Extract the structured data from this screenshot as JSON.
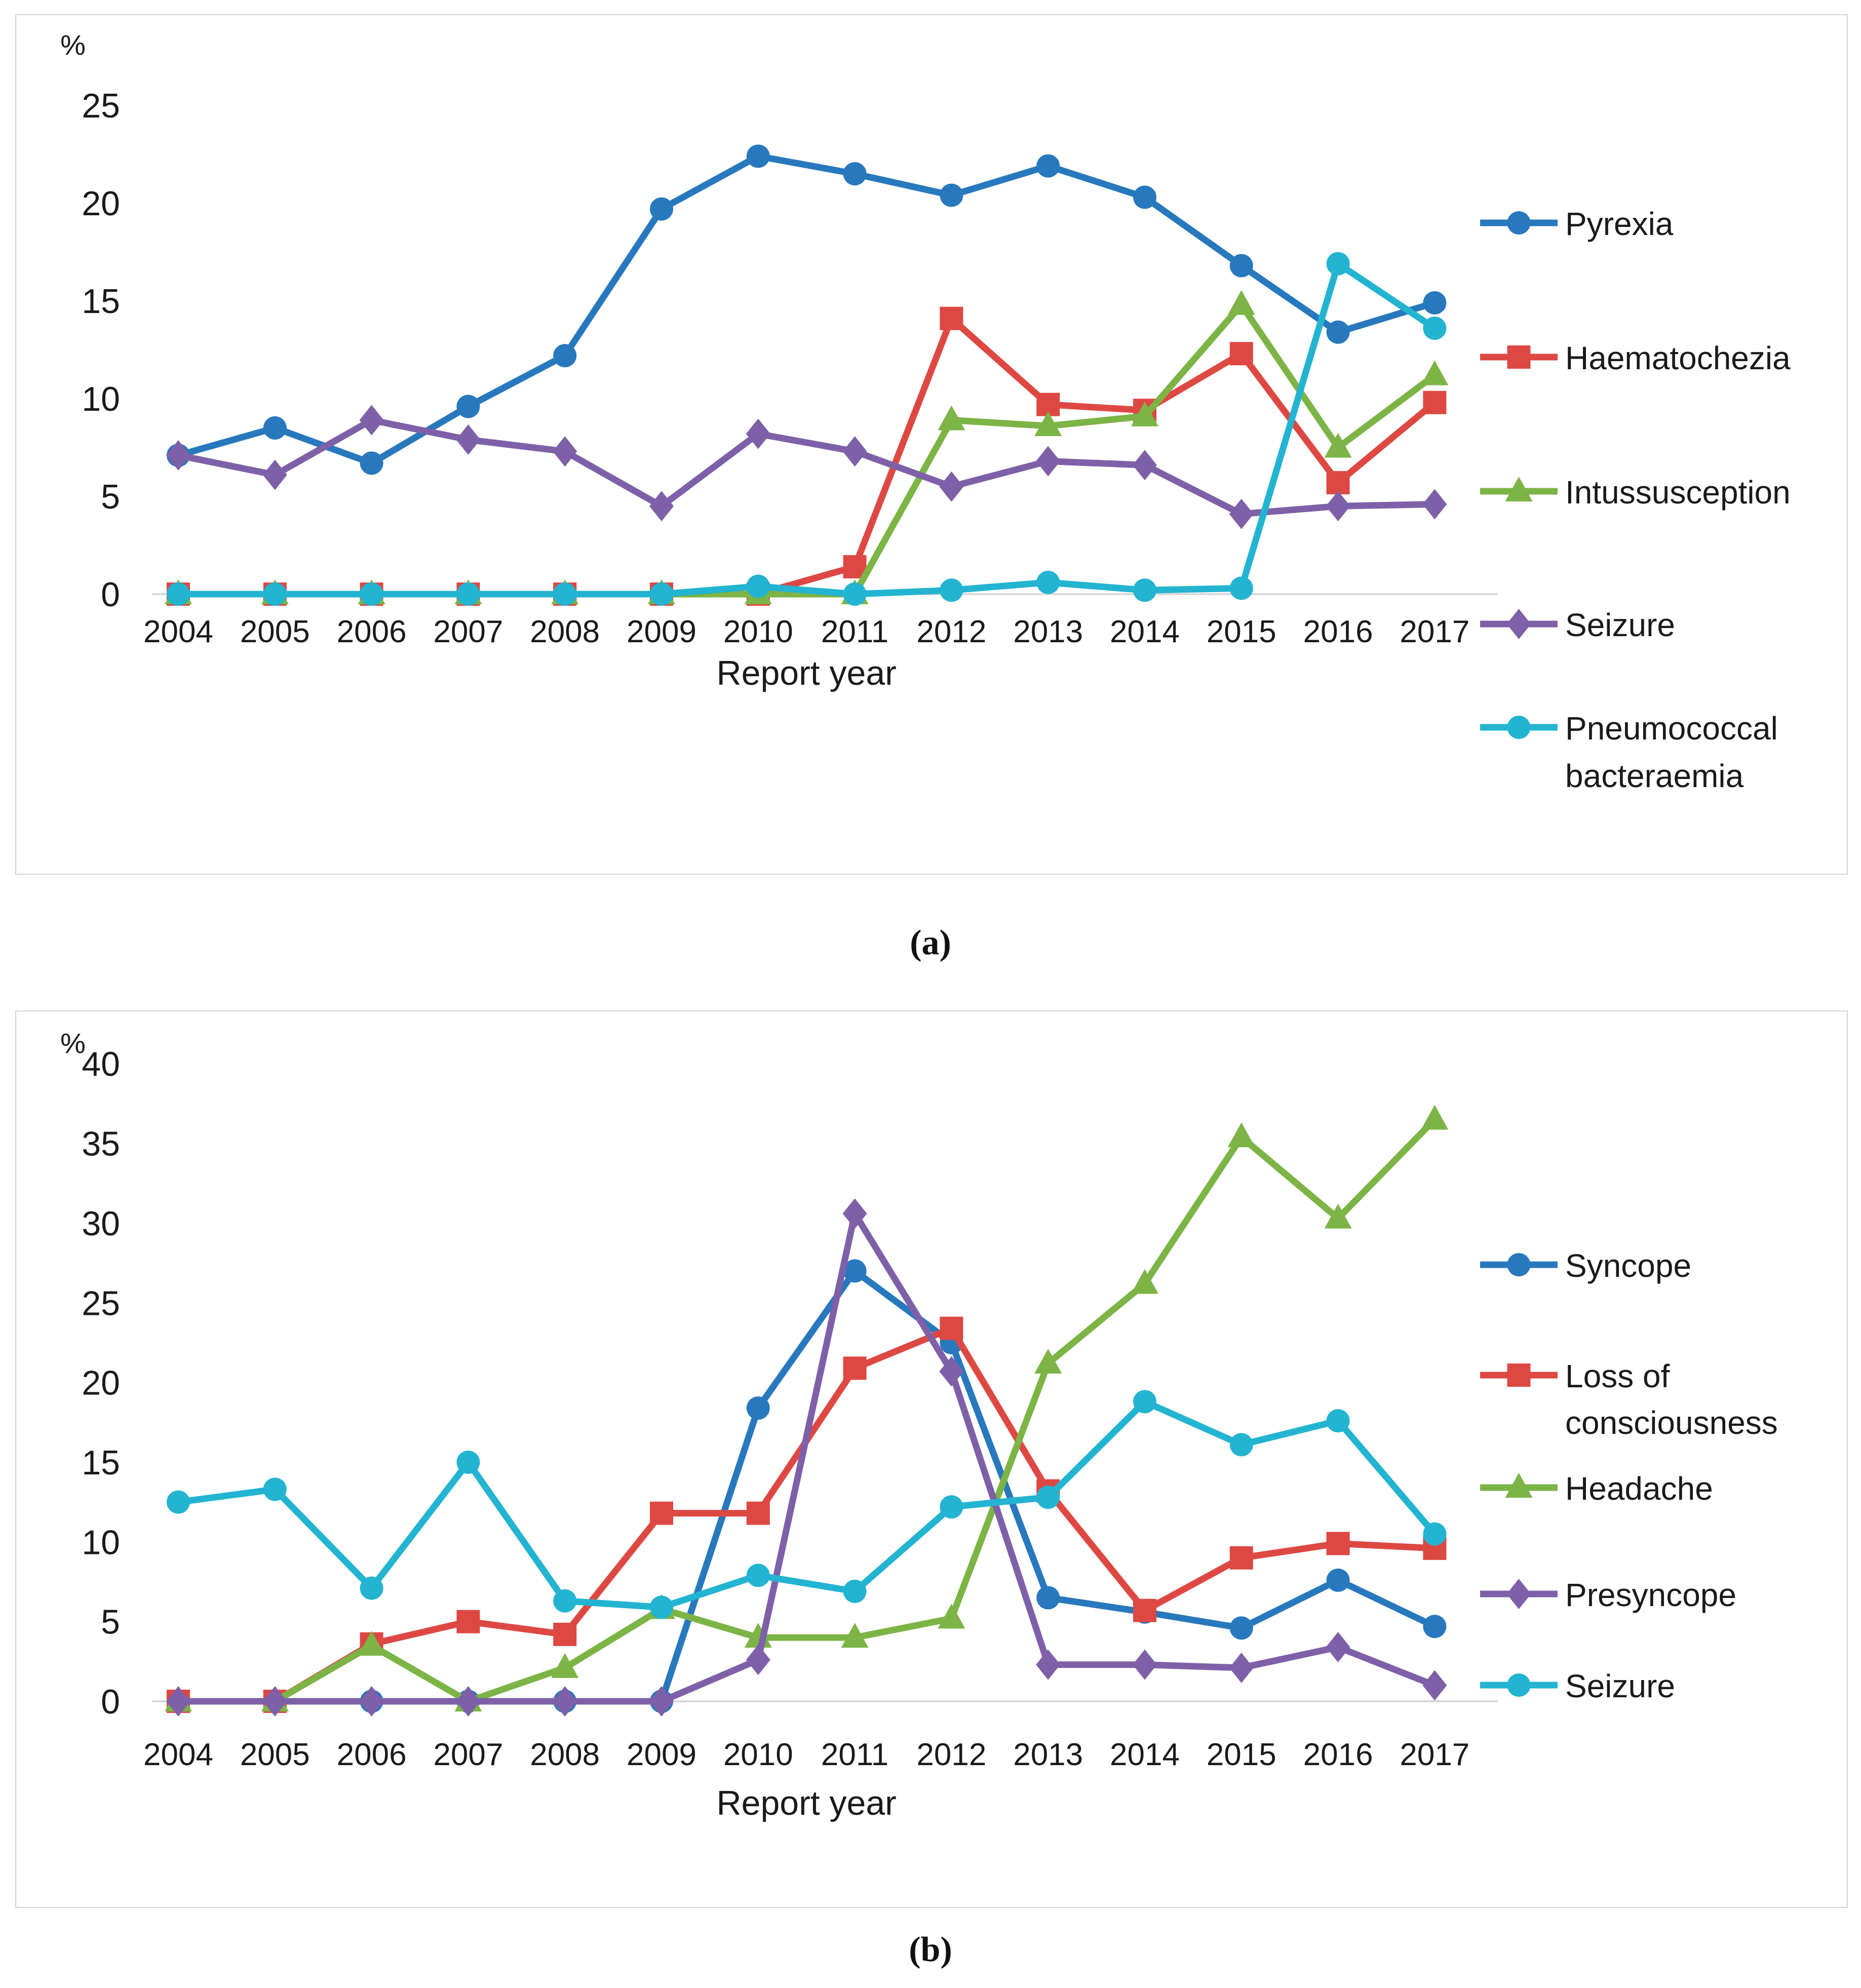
{
  "page": {
    "background": "#ffffff",
    "text_color": "#1a1a1a",
    "axis_line_color": "#d9d9d9",
    "box_border_color": "#d4d4d4"
  },
  "captions": {
    "a": "(a)",
    "b": "(b)"
  },
  "chart_data": [
    {
      "panel": "a",
      "type": "line",
      "title": "",
      "unit_label": "%",
      "xlabel": "Report year",
      "ylabel": "",
      "ylim": [
        0,
        25
      ],
      "yticks": [
        0,
        5,
        10,
        15,
        20,
        25
      ],
      "grid": false,
      "legend_position": "right",
      "caption": "(a)",
      "categories": [
        "2004",
        "2005",
        "2006",
        "2007",
        "2008",
        "2009",
        "2010",
        "2011",
        "2012",
        "2013",
        "2014",
        "2015",
        "2016",
        "2017"
      ],
      "series": [
        {
          "name": "Pyrexia",
          "marker": "circle",
          "color": "#2878BE",
          "values": [
            7.1,
            8.5,
            6.7,
            9.6,
            12.2,
            19.7,
            22.4,
            21.5,
            20.4,
            21.9,
            20.3,
            16.8,
            13.4,
            14.9
          ]
        },
        {
          "name": "Haematochezia",
          "marker": "square",
          "color": "#DE4843",
          "values": [
            0,
            0,
            0,
            0,
            0,
            0,
            0,
            1.4,
            14.1,
            9.7,
            9.4,
            12.3,
            5.7,
            9.8
          ]
        },
        {
          "name": "Intussusception",
          "marker": "triangle",
          "color": "#7CB446",
          "values": [
            0,
            0,
            0,
            0,
            0,
            0,
            0,
            0,
            8.9,
            8.6,
            9.1,
            14.8,
            7.5,
            11.2
          ]
        },
        {
          "name": "Seizure",
          "marker": "diamond",
          "color": "#7E60A8",
          "values": [
            7.1,
            6.1,
            8.9,
            7.9,
            7.3,
            4.5,
            8.2,
            7.3,
            5.5,
            6.8,
            6.6,
            4.1,
            4.5,
            4.6
          ]
        },
        {
          "name": "Pneumococcal bacteraemia",
          "legend_lines": [
            "Pneumococcal",
            "bacteraemia"
          ],
          "marker": "circle",
          "color": "#22B4D1",
          "values": [
            0,
            0,
            0,
            0,
            0,
            0,
            0.4,
            0,
            0.2,
            0.6,
            0.2,
            0.3,
            16.9,
            13.6
          ]
        }
      ]
    },
    {
      "panel": "b",
      "type": "line",
      "title": "",
      "unit_label": "%",
      "xlabel": "Report year",
      "ylabel": "",
      "ylim": [
        0,
        40
      ],
      "yticks": [
        0,
        5,
        10,
        15,
        20,
        25,
        30,
        35,
        40
      ],
      "grid": false,
      "legend_position": "right",
      "caption": "(b)",
      "categories": [
        "2004",
        "2005",
        "2006",
        "2007",
        "2008",
        "2009",
        "2010",
        "2011",
        "2012",
        "2013",
        "2014",
        "2015",
        "2016",
        "2017"
      ],
      "series": [
        {
          "name": "Syncope",
          "marker": "circle",
          "color": "#2878BE",
          "values": [
            0,
            0,
            0,
            0,
            0,
            0,
            18.4,
            27.0,
            22.5,
            6.5,
            5.6,
            4.6,
            7.6,
            4.7
          ]
        },
        {
          "name": "Loss of consciousness",
          "legend_lines": [
            "Loss of",
            "consciousness"
          ],
          "marker": "square",
          "color": "#DE4843",
          "values": [
            0,
            0,
            3.6,
            5.0,
            4.2,
            11.8,
            11.8,
            20.9,
            23.4,
            13.2,
            5.7,
            9.0,
            9.9,
            9.6
          ]
        },
        {
          "name": "Headache",
          "marker": "triangle",
          "color": "#7CB446",
          "values": [
            0,
            0,
            3.5,
            0,
            2.1,
            5.8,
            4.0,
            4.0,
            5.2,
            21.2,
            26.2,
            35.4,
            30.3,
            36.5
          ]
        },
        {
          "name": "Presyncope",
          "marker": "diamond",
          "color": "#7E60A8",
          "values": [
            0,
            0,
            0,
            0,
            0,
            0,
            2.6,
            30.6,
            20.7,
            2.3,
            2.3,
            2.1,
            3.4,
            1.0
          ]
        },
        {
          "name": "Seizure",
          "marker": "circle",
          "color": "#22B4D1",
          "values": [
            12.5,
            13.3,
            7.1,
            15.0,
            6.3,
            5.9,
            7.9,
            6.9,
            12.2,
            12.8,
            18.8,
            16.1,
            17.6,
            10.5
          ]
        }
      ]
    }
  ]
}
